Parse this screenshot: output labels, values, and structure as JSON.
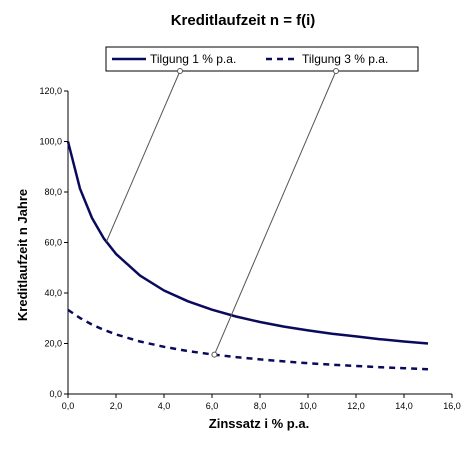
{
  "chart_data": {
    "type": "line",
    "title": "Kreditlaufzeit n = f(i)",
    "xlabel": "Zinssatz i % p.a.",
    "ylabel": "Kreditlaufzeit n Jahre",
    "xlim": [
      0,
      16
    ],
    "ylim": [
      0,
      120
    ],
    "xticks": [
      "0,0",
      "2,0",
      "4,0",
      "6,0",
      "8,0",
      "10,0",
      "12,0",
      "14,0",
      "16,0"
    ],
    "yticks": [
      "0,0",
      "20,0",
      "40,0",
      "60,0",
      "80,0",
      "100,0",
      "120,0"
    ],
    "x": [
      0,
      0.5,
      1,
      1.5,
      2,
      3,
      4,
      5,
      6,
      7,
      8,
      9,
      10,
      11,
      12,
      13,
      14,
      15
    ],
    "series": [
      {
        "name": "Tilgung 1 % p.a.",
        "style": "solid",
        "color": "#0a0a5c",
        "values": [
          100,
          81.3,
          69.7,
          61.5,
          55.5,
          46.9,
          41.0,
          36.7,
          33.4,
          30.7,
          28.5,
          26.7,
          25.2,
          23.9,
          22.8,
          21.7,
          20.8,
          20.0
        ]
      },
      {
        "name": "Tilgung 3 % p.a.",
        "style": "dashed",
        "color": "#0a0a5c",
        "values": [
          33.3,
          30.1,
          27.5,
          25.4,
          23.6,
          20.8,
          18.7,
          17.0,
          15.7,
          14.6,
          13.7,
          12.9,
          12.2,
          11.6,
          11.1,
          10.6,
          10.2,
          9.8
        ]
      }
    ],
    "legend": "top-right",
    "grid": false
  }
}
